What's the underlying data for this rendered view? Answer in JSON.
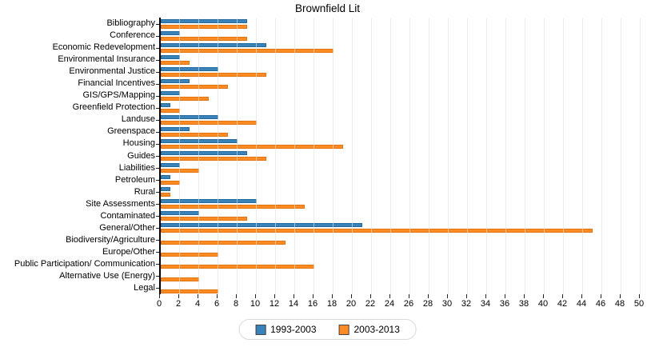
{
  "title": "Brownfield Lit",
  "colors": {
    "series1_fill": "#3a82ba",
    "series1_edge": "#266a9b",
    "series2_fill": "#fd8b25",
    "series2_edge": "#e0740f",
    "gridline": "#d9d9d9",
    "axis": "#000000"
  },
  "legend": {
    "items": [
      {
        "label": "1993-2003",
        "color": "#3a82ba"
      },
      {
        "label": "2003-2013",
        "color": "#fd8b25"
      }
    ]
  },
  "chart_data": {
    "type": "bar",
    "orientation": "horizontal",
    "title": "Brownfield Lit",
    "categories": [
      "Bibliography",
      "Conference",
      "Economic Redevelopment",
      "Environmental Insurance",
      "Environmental Justice",
      "Financial Incentives",
      "GIS/GPS/Mapping",
      "Greenfield Protection",
      "Landuse",
      "Greenspace",
      "Housing",
      "Guides",
      "Liabilities",
      "Petroleum",
      "Rural",
      "Site Assessments",
      "Contaminated",
      "General/Other",
      "Biodiversity/Agriculture",
      "Europe/Other",
      "Public Participation/ Communication",
      "Alternative Use (Energy)",
      "Legal"
    ],
    "series": [
      {
        "name": "1993-2003",
        "values": [
          9,
          2,
          11,
          2,
          6,
          3,
          2,
          1,
          6,
          3,
          8,
          9,
          2,
          1,
          1,
          10,
          4,
          21,
          0,
          0,
          0,
          0,
          0
        ]
      },
      {
        "name": "2003-2013",
        "values": [
          9,
          9,
          18,
          3,
          11,
          7,
          5,
          2,
          10,
          7,
          19,
          11,
          4,
          2,
          1,
          15,
          9,
          45,
          13,
          6,
          16,
          4,
          6
        ]
      }
    ],
    "xlim": [
      0,
      50
    ],
    "x_tick_step": 2,
    "x_tick_labels": [
      "0",
      "2",
      "4",
      "6",
      "8",
      "10",
      "12",
      "14",
      "16",
      "18",
      "20",
      "22",
      "24",
      "26",
      "28",
      "30",
      "32",
      "34",
      "36",
      "38",
      "40",
      "42",
      "44",
      "46",
      "48",
      "50"
    ],
    "grid": true,
    "legend_position": "bottom"
  }
}
